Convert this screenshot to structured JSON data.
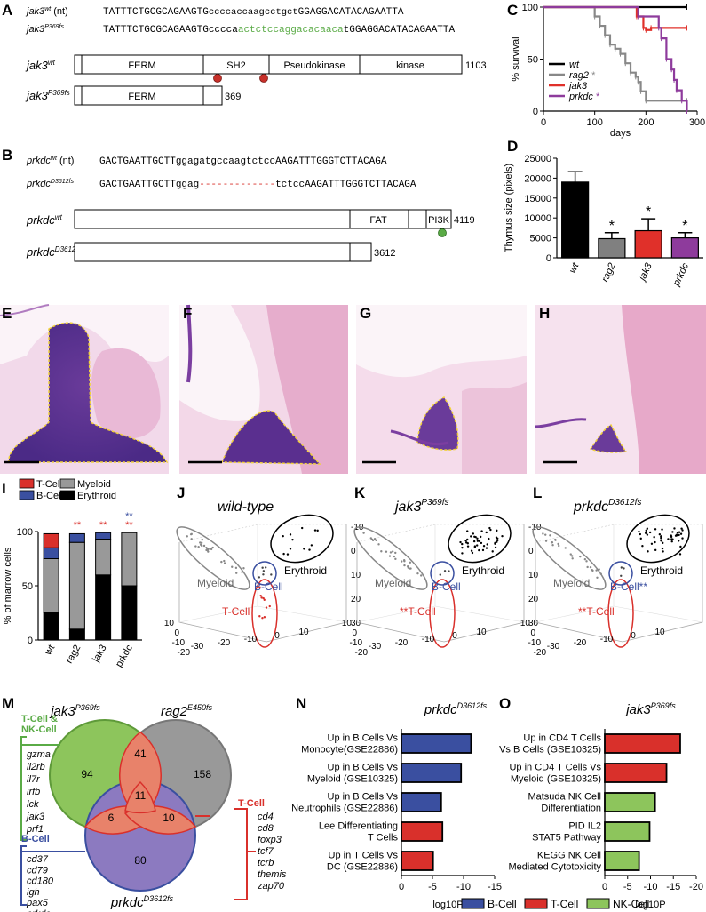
{
  "panel_letters": [
    "A",
    "B",
    "C",
    "D",
    "E",
    "F",
    "G",
    "H",
    "I",
    "J",
    "K",
    "L",
    "M",
    "N",
    "O"
  ],
  "panel_a": {
    "seq_wt": {
      "name": "jak3",
      "sup": "wt",
      "suffix": " (nt)",
      "left": "TATTTCTGCGCAGAAGTG",
      "mid": "ccccaccaagcctgct",
      "right": "GGAGGACATACAGAATTA"
    },
    "seq_mut": {
      "name": "jak3",
      "sup": "P369fs",
      "left": "TATTTCTGCGCAGAAGTG",
      "mid1": "cccca",
      "mid2": "actctccaggacacaaca",
      "right": "tGGAGGACATACAGAATTA"
    },
    "wt_protein": {
      "name": "jak3",
      "sup": "wt",
      "domains": [
        "FERM",
        "SH2",
        "Pseudokinase",
        "kinase"
      ],
      "length": "1103"
    },
    "mut_protein": {
      "name": "jak3",
      "sup": "P369fs",
      "domains": [
        "FERM"
      ],
      "length": "369"
    }
  },
  "panel_b": {
    "seq_wt": {
      "name": "prkdc",
      "sup": "wt",
      "suffix": " (nt)",
      "left": "GACTGAATTGCTT",
      "mid": "ggagatgccaagtctcc",
      "right": "AAGATTTGGGTCTTACAGA"
    },
    "seq_mut": {
      "name": "prkdc",
      "sup": "D3612fs",
      "left": "GACTGAATTGCTT",
      "mid1": "ggag",
      "dash": "-------------",
      "mid2": "tctcc",
      "right": "AAGATTTGGGTCTTACAGA"
    },
    "wt_protein": {
      "name": "prkdc",
      "sup": "wt",
      "domains": [
        "FAT",
        "PI3K"
      ],
      "length": "4119"
    },
    "mut_protein": {
      "name": "prkdc",
      "sup": "D3612fs",
      "length": "3612"
    }
  },
  "chart_data": [
    {
      "panel": "C",
      "type": "line",
      "ylabel": "% survival",
      "xlabel": "days",
      "xlim": [
        0,
        300
      ],
      "ylim": [
        0,
        100
      ],
      "xticks": [
        "0",
        "100",
        "200",
        "300"
      ],
      "yticks": [
        "0",
        "50",
        "100"
      ],
      "legend": "bottom-left",
      "series": [
        {
          "name": "wt",
          "marker": "",
          "color": "#000000",
          "x": [
            0,
            280
          ],
          "y": [
            100,
            100
          ]
        },
        {
          "name": "rag2",
          "marker": "*",
          "color": "#888888",
          "x": [
            0,
            95,
            100,
            110,
            120,
            130,
            140,
            150,
            160,
            170,
            180,
            185,
            190,
            200,
            210,
            280
          ],
          "y": [
            100,
            100,
            91,
            82,
            73,
            64,
            60,
            55,
            46,
            37,
            33,
            28,
            19,
            10,
            10,
            10
          ]
        },
        {
          "name": "jak3",
          "marker": "",
          "color": "#e0302a",
          "x": [
            0,
            180,
            182,
            195,
            200,
            210,
            240,
            245,
            280
          ],
          "y": [
            100,
            100,
            91,
            80,
            78,
            80,
            80,
            80,
            80
          ]
        },
        {
          "name": "prkdc",
          "marker": "*",
          "color": "#8e3b9c",
          "x": [
            0,
            180,
            185,
            190,
            220,
            225,
            230,
            240,
            250,
            255,
            260,
            270,
            280
          ],
          "y": [
            100,
            100,
            91,
            91,
            91,
            80,
            70,
            50,
            40,
            30,
            20,
            10,
            0
          ]
        }
      ]
    },
    {
      "panel": "D",
      "type": "bar",
      "ylabel": "Thymus size (pixels)",
      "ylim": [
        0,
        25000
      ],
      "yticks": [
        "0",
        "5000",
        "10000",
        "15000",
        "20000",
        "25000"
      ],
      "categories": [
        "wt",
        "rag2",
        "jak3",
        "prkdc"
      ],
      "values": [
        19000,
        4800,
        6800,
        5000
      ],
      "errors": [
        2600,
        1500,
        3000,
        1300
      ],
      "significance": [
        "",
        "*",
        "*",
        "*"
      ],
      "colors": [
        "#000000",
        "#808080",
        "#e0302a",
        "#8e3b9c"
      ]
    },
    {
      "panel": "I",
      "type": "bar",
      "ylabel": "% of marrow cells",
      "ylim": [
        0,
        100
      ],
      "yticks": [
        "0",
        "50",
        "100"
      ],
      "categories": [
        "wt",
        "rag2",
        "jak3",
        "prkdc"
      ],
      "legend": [
        "T-Cell",
        "Myeloid",
        "B-Cell",
        "Erythroid"
      ],
      "series": [
        {
          "name": "Erythroid",
          "color": "#000000",
          "values": [
            25,
            10,
            60,
            50
          ]
        },
        {
          "name": "Myeloid",
          "color": "#999999",
          "values": [
            50,
            80,
            33,
            49
          ]
        },
        {
          "name": "B-Cell",
          "color": "#3a4fa0",
          "values": [
            10,
            8,
            6,
            0
          ]
        },
        {
          "name": "T-Cell",
          "color": "#d9302b",
          "values": [
            13,
            0,
            0,
            0
          ]
        }
      ],
      "significance_red": [
        "",
        "**",
        "**",
        "**"
      ],
      "significance_blue": [
        "",
        "",
        "",
        "**"
      ]
    },
    {
      "panel": "N",
      "type": "bar",
      "title": "prkdc",
      "title_sup": "D3612fs",
      "xlabel": "log10P",
      "xlim": [
        0,
        -15
      ],
      "xticks": [
        "0",
        "-5",
        "-10",
        "-15"
      ],
      "categories": [
        "Up in B Cells Vs|Monocyte(GSE22886)",
        "Up in B Cells Vs|Myeloid (GSE10325)",
        "Up in B Cells Vs|Neutrophils (GSE22886)",
        "Lee Differentiating|T Cells",
        "Up in T Cells Vs|DC (GSE22886)"
      ],
      "values": [
        -11.2,
        -9.6,
        -6.4,
        -6.6,
        -5.1
      ],
      "colors": [
        "#3a4fa0",
        "#3a4fa0",
        "#3a4fa0",
        "#d9302b",
        "#d9302b"
      ]
    },
    {
      "panel": "O",
      "type": "bar",
      "title": "jak3",
      "title_sup": "P369fs",
      "xlabel": "log10P",
      "xlim": [
        0,
        -20
      ],
      "xticks": [
        "0",
        "-5",
        "-10",
        "-15",
        "-20"
      ],
      "categories": [
        "Up in CD4 T Cells|Vs B Cells (GSE10325)",
        "Up in CD4 T Cells Vs|Myeloid (GSE10325)",
        "Matsuda NK Cell|Differentiation",
        "PID IL2|STAT5 Pathway",
        "KEGG NK Cell|Mediated Cytotoxicity"
      ],
      "values": [
        -16.5,
        -13.5,
        -11.0,
        -9.8,
        -7.5
      ],
      "colors": [
        "#d9302b",
        "#d9302b",
        "#8dc55c",
        "#8dc55c",
        "#8dc55c"
      ]
    }
  ],
  "histology": {
    "panels": [
      "E",
      "F",
      "G",
      "H"
    ]
  },
  "scatter3d": {
    "titles": [
      {
        "name": "wild-type",
        "sup": ""
      },
      {
        "name": "jak3",
        "sup": "P369fs"
      },
      {
        "name": "prkdc",
        "sup": "D3612fs"
      }
    ],
    "labels": [
      "Myeloid",
      "B-Cell",
      "Erythroid",
      "T-Cell"
    ],
    "marks": {
      "tcell_panels_k_l": "**",
      "bcell_panel_l": "**"
    },
    "axis_ticks_right": [
      "-10",
      "0",
      "10",
      "20",
      "30"
    ],
    "axis_ticks_left": [
      "10",
      "0",
      "-10",
      "-20"
    ],
    "axis_ticks_bottom": [
      "-30",
      "-20",
      "-10",
      "0",
      "10"
    ]
  },
  "venn": {
    "sets": [
      {
        "name": "jak3",
        "sup": "P369fs"
      },
      {
        "name": "rag2",
        "sup": "E450fs"
      },
      {
        "name": "prkdc",
        "sup": "D3612fs"
      }
    ],
    "counts": {
      "jak3_only": "94",
      "rag2_only": "158",
      "prkdc_only": "80",
      "jak3_rag2": "41",
      "jak3_prkdc": "6",
      "rag2_prkdc": "10",
      "all": "11"
    },
    "tnk_title": [
      "T-Cell &",
      "NK-Cell"
    ],
    "tnk_genes": [
      "gzma",
      "il2rb",
      "il7r",
      "irfb",
      "lck",
      "jak3",
      "prf1"
    ],
    "tcell_title": "T-Cell",
    "tcell_genes": [
      "cd4",
      "cd8",
      "foxp3",
      "tcf7",
      "tcrb",
      "themis",
      "zap70"
    ],
    "bcell_title": "B-Cell",
    "bcell_genes": [
      "cd37",
      "cd79",
      "cd180",
      "igh",
      "pax5",
      "prkdc"
    ]
  },
  "bottom_legend": [
    {
      "label": "B-Cell",
      "color": "#3a4fa0"
    },
    {
      "label": "T-Cell",
      "color": "#d9302b"
    },
    {
      "label": "NK-Cell",
      "color": "#8dc55c"
    }
  ]
}
